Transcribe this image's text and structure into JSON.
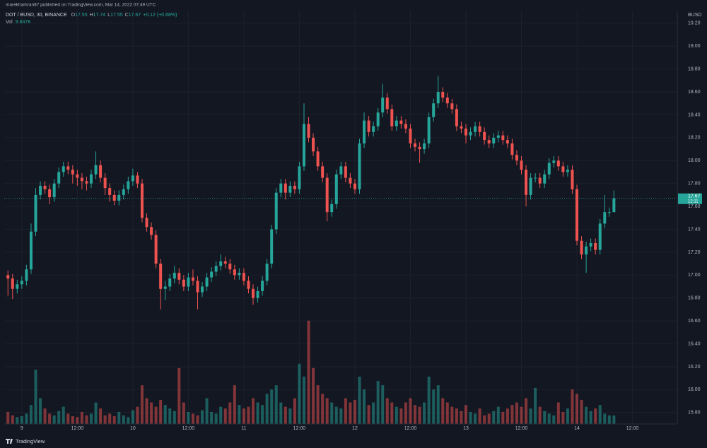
{
  "header": {
    "published": "marekhamran87 published on TradingView.com, Mar 14, 2022 07:49 UTC"
  },
  "footer": {
    "brand": "TradingView"
  },
  "chart_data": {
    "type": "candlestick",
    "symbol": "DOT / BUSD, 30, BINANCE",
    "legend_keys": [
      "O",
      "H",
      "L",
      "C"
    ],
    "change_label": "+0.12 (+0.68%)",
    "volume_title": "Vol",
    "volume_label": "9.847K",
    "currency": "BUSD",
    "countdown": "12:11",
    "x": [
      -3,
      -2,
      -1,
      0,
      1,
      2,
      3,
      4,
      5,
      6,
      7,
      8,
      9,
      10,
      11,
      12,
      13,
      14,
      15,
      16,
      17,
      18,
      19,
      20,
      21,
      22,
      23,
      24,
      25,
      26,
      27,
      28,
      29,
      30,
      31,
      32,
      33,
      34,
      35,
      36,
      37,
      38,
      39,
      40,
      41,
      42,
      43,
      44,
      45,
      46,
      47,
      48,
      49,
      50,
      51,
      52,
      53,
      54,
      55,
      56,
      57,
      58,
      59,
      60,
      61,
      62,
      63,
      64,
      65,
      66,
      67,
      68,
      69,
      70,
      71,
      72,
      73,
      74,
      75,
      76,
      77,
      78,
      79,
      80,
      81,
      82,
      83,
      84,
      85,
      86,
      87,
      88,
      89,
      90,
      91,
      92,
      93,
      94,
      95,
      96,
      97,
      98,
      99,
      100,
      101,
      102,
      103,
      104,
      105,
      106,
      107,
      108,
      109,
      110,
      111,
      112,
      113,
      114,
      115,
      116,
      117,
      118,
      119,
      120,
      121,
      122,
      123,
      124,
      125,
      126,
      127,
      128
    ],
    "open": [
      17.0,
      16.97,
      16.88,
      16.92,
      16.95,
      17.05,
      17.38,
      17.7,
      17.78,
      17.75,
      17.68,
      17.8,
      17.9,
      17.95,
      17.92,
      17.88,
      17.85,
      17.82,
      17.8,
      17.88,
      17.96,
      17.85,
      17.76,
      17.7,
      17.65,
      17.7,
      17.75,
      17.82,
      17.87,
      17.8,
      17.5,
      17.42,
      17.35,
      17.1,
      16.88,
      16.9,
      16.97,
      17.02,
      16.96,
      16.9,
      16.98,
      16.95,
      16.85,
      16.9,
      16.98,
      17.03,
      17.08,
      17.12,
      17.1,
      17.05,
      17.0,
      17.02,
      16.95,
      16.88,
      16.8,
      16.86,
      16.95,
      17.1,
      17.4,
      17.72,
      17.8,
      17.72,
      17.78,
      17.75,
      17.95,
      18.32,
      18.2,
      18.08,
      17.95,
      17.85,
      17.55,
      17.62,
      17.88,
      17.95,
      17.85,
      17.8,
      17.75,
      18.15,
      18.35,
      18.25,
      18.3,
      18.42,
      18.55,
      18.45,
      18.3,
      18.35,
      18.32,
      18.28,
      18.15,
      18.12,
      18.1,
      18.15,
      18.38,
      18.5,
      18.6,
      18.55,
      18.5,
      18.45,
      18.3,
      18.28,
      18.22,
      18.25,
      18.3,
      18.25,
      18.18,
      18.15,
      18.2,
      18.22,
      18.18,
      18.15,
      18.05,
      18.0,
      17.92,
      17.7,
      17.85,
      17.85,
      17.8,
      17.88,
      17.98,
      18.0,
      17.95,
      17.9,
      17.92,
      17.75,
      17.3,
      17.18,
      17.25,
      17.28,
      17.22,
      17.45,
      17.55,
      17.55
    ],
    "high": [
      17.04,
      17.01,
      16.96,
      16.99,
      17.09,
      17.45,
      17.76,
      17.82,
      17.82,
      17.79,
      17.84,
      17.94,
      17.99,
      17.99,
      17.96,
      17.92,
      17.89,
      17.86,
      17.92,
      18.08,
      18.0,
      17.89,
      17.8,
      17.74,
      17.74,
      17.79,
      17.86,
      17.93,
      17.9,
      17.84,
      17.54,
      17.46,
      17.39,
      17.14,
      16.95,
      17.01,
      17.08,
      17.06,
      17.0,
      17.02,
      17.05,
      16.99,
      16.94,
      17.02,
      17.07,
      17.12,
      17.18,
      17.16,
      17.14,
      17.09,
      17.06,
      17.06,
      16.99,
      16.92,
      16.9,
      16.99,
      17.14,
      17.44,
      17.76,
      17.84,
      17.84,
      17.82,
      17.82,
      17.99,
      18.5,
      18.38,
      18.24,
      18.12,
      17.99,
      17.89,
      17.66,
      17.92,
      17.99,
      17.99,
      17.89,
      17.84,
      18.19,
      18.42,
      18.39,
      18.34,
      18.46,
      18.67,
      18.59,
      18.49,
      18.39,
      18.39,
      18.36,
      18.32,
      18.19,
      18.16,
      18.19,
      18.42,
      18.54,
      18.74,
      18.64,
      18.59,
      18.54,
      18.49,
      18.34,
      18.32,
      18.29,
      18.34,
      18.34,
      18.29,
      18.22,
      18.24,
      18.26,
      18.26,
      18.22,
      18.19,
      18.09,
      18.04,
      17.96,
      17.89,
      17.89,
      17.89,
      17.92,
      18.02,
      18.04,
      18.04,
      17.99,
      17.96,
      17.96,
      17.79,
      17.34,
      17.29,
      17.32,
      17.32,
      17.49,
      17.7,
      17.59,
      17.74
    ],
    "low": [
      16.82,
      16.79,
      16.84,
      16.88,
      16.91,
      17.01,
      17.34,
      17.66,
      17.71,
      17.62,
      17.64,
      17.76,
      17.86,
      17.88,
      17.8,
      17.78,
      17.75,
      17.74,
      17.76,
      17.84,
      17.81,
      17.7,
      17.64,
      17.61,
      17.61,
      17.66,
      17.71,
      17.78,
      17.76,
      17.46,
      17.38,
      17.31,
      17.06,
      16.7,
      16.78,
      16.86,
      16.93,
      16.92,
      16.86,
      16.86,
      16.91,
      16.7,
      16.81,
      16.86,
      16.94,
      16.99,
      17.04,
      17.06,
      17.01,
      16.96,
      16.96,
      16.91,
      16.84,
      16.74,
      16.76,
      16.82,
      16.91,
      17.06,
      17.36,
      17.68,
      17.66,
      17.68,
      17.71,
      17.71,
      17.91,
      18.16,
      18.04,
      17.91,
      17.81,
      17.47,
      17.51,
      17.58,
      17.84,
      17.81,
      17.76,
      17.71,
      17.71,
      18.11,
      18.21,
      18.21,
      18.26,
      18.38,
      18.41,
      18.26,
      18.26,
      18.28,
      18.24,
      18.11,
      18.08,
      17.98,
      18.06,
      18.11,
      18.34,
      18.46,
      18.51,
      18.46,
      18.41,
      18.26,
      18.24,
      18.15,
      18.18,
      18.21,
      18.21,
      18.14,
      18.11,
      18.11,
      18.16,
      18.14,
      18.11,
      18.01,
      17.96,
      17.88,
      17.6,
      17.66,
      17.81,
      17.76,
      17.76,
      17.84,
      17.94,
      17.91,
      17.86,
      17.86,
      17.71,
      17.26,
      17.14,
      17.02,
      17.21,
      17.18,
      17.18,
      17.41,
      17.51,
      17.55
    ],
    "close": [
      16.97,
      16.88,
      16.92,
      16.95,
      17.05,
      17.38,
      17.7,
      17.78,
      17.75,
      17.68,
      17.8,
      17.9,
      17.95,
      17.92,
      17.88,
      17.85,
      17.82,
      17.8,
      17.88,
      17.96,
      17.85,
      17.76,
      17.7,
      17.65,
      17.7,
      17.75,
      17.82,
      17.87,
      17.8,
      17.5,
      17.42,
      17.35,
      17.1,
      16.88,
      16.9,
      16.97,
      17.02,
      16.96,
      16.9,
      16.98,
      16.95,
      16.85,
      16.9,
      16.98,
      17.03,
      17.08,
      17.12,
      17.1,
      17.05,
      17.0,
      17.02,
      16.95,
      16.88,
      16.8,
      16.86,
      16.95,
      17.1,
      17.4,
      17.72,
      17.8,
      17.72,
      17.78,
      17.75,
      17.95,
      18.32,
      18.2,
      18.08,
      17.95,
      17.85,
      17.55,
      17.62,
      17.88,
      17.95,
      17.85,
      17.8,
      17.75,
      18.15,
      18.35,
      18.25,
      18.3,
      18.42,
      18.55,
      18.45,
      18.3,
      18.35,
      18.32,
      18.28,
      18.15,
      18.12,
      18.1,
      18.15,
      18.38,
      18.5,
      18.6,
      18.55,
      18.5,
      18.45,
      18.3,
      18.28,
      18.22,
      18.25,
      18.3,
      18.25,
      18.18,
      18.15,
      18.2,
      18.22,
      18.18,
      18.15,
      18.05,
      18.0,
      17.92,
      17.7,
      17.85,
      17.85,
      17.8,
      17.88,
      17.98,
      18.0,
      17.95,
      17.9,
      17.92,
      17.75,
      17.3,
      17.18,
      17.25,
      17.28,
      17.22,
      17.45,
      17.55,
      17.55,
      17.67
    ],
    "volume": [
      14,
      10,
      8,
      9,
      12,
      22,
      63,
      30,
      18,
      12,
      10,
      15,
      20,
      12,
      9,
      8,
      14,
      10,
      12,
      25,
      18,
      10,
      12,
      9,
      14,
      10,
      8,
      16,
      20,
      45,
      30,
      25,
      20,
      28,
      22,
      18,
      15,
      65,
      25,
      14,
      12,
      10,
      16,
      30,
      14,
      12,
      20,
      18,
      25,
      45,
      22,
      18,
      20,
      30,
      25,
      22,
      35,
      40,
      45,
      25,
      20,
      18,
      30,
      70,
      55,
      120,
      65,
      45,
      35,
      30,
      25,
      20,
      18,
      30,
      25,
      28,
      55,
      40,
      22,
      25,
      50,
      45,
      30,
      25,
      20,
      18,
      25,
      30,
      22,
      20,
      25,
      55,
      40,
      45,
      30,
      25,
      20,
      18,
      15,
      22,
      14,
      12,
      18,
      10,
      12,
      15,
      20,
      14,
      18,
      22,
      25,
      20,
      30,
      18,
      42,
      20,
      15,
      12,
      10,
      25,
      14,
      18,
      40,
      35,
      28,
      20,
      15,
      18,
      22,
      12,
      10,
      9.847
    ],
    "up_color": "#26a69a",
    "down_color": "#ef5350",
    "xlim": [
      -3.8,
      141.7
    ],
    "ylim": [
      15.7,
      19.31
    ],
    "vlim": [
      0,
      480
    ],
    "xticks": [
      {
        "value": 0,
        "label": "9"
      },
      {
        "value": 12,
        "label": "12:00"
      },
      {
        "value": 24,
        "label": "10"
      },
      {
        "value": 36,
        "label": "12:00"
      },
      {
        "value": 48,
        "label": "11"
      },
      {
        "value": 60,
        "label": "12:00"
      },
      {
        "value": 72,
        "label": "12"
      },
      {
        "value": 84,
        "label": "12:00"
      },
      {
        "value": 96,
        "label": "13"
      },
      {
        "value": 108,
        "label": "12:00"
      },
      {
        "value": 120,
        "label": "14"
      },
      {
        "value": 132,
        "label": "12:00"
      }
    ],
    "yticks": [
      {
        "value": 15.8,
        "label": "15.80"
      },
      {
        "value": 16.0,
        "label": "16.00"
      },
      {
        "value": 16.2,
        "label": "16.20"
      },
      {
        "value": 16.4,
        "label": "16.40"
      },
      {
        "value": 16.6,
        "label": "16.60"
      },
      {
        "value": 16.8,
        "label": "16.80"
      },
      {
        "value": 17.0,
        "label": "17.00"
      },
      {
        "value": 17.2,
        "label": "17.20"
      },
      {
        "value": 17.4,
        "label": "17.40"
      },
      {
        "value": 17.6,
        "label": "17.60"
      },
      {
        "value": 17.8,
        "label": "17.80"
      },
      {
        "value": 18.0,
        "label": "18.00"
      },
      {
        "value": 18.2,
        "label": "18.20"
      },
      {
        "value": 18.4,
        "label": "18.40"
      },
      {
        "value": 18.6,
        "label": "18.60"
      },
      {
        "value": 18.8,
        "label": "18.80"
      },
      {
        "value": 19.0,
        "label": "19.00"
      },
      {
        "value": 19.2,
        "label": "19.20"
      }
    ],
    "grid": true
  }
}
